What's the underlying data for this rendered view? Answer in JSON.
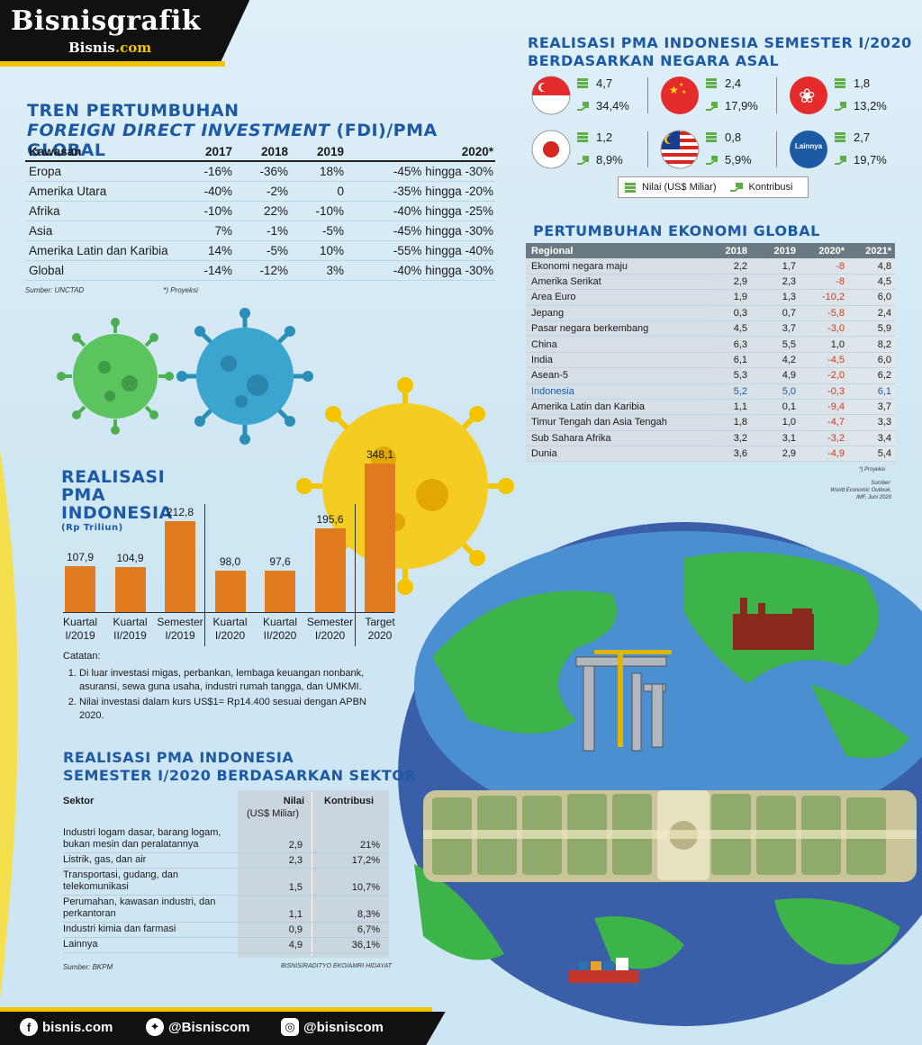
{
  "brand": {
    "title": "Bisnisgrafik",
    "sub_main": "Bisnis",
    "sub_dot": ".com"
  },
  "fdi": {
    "title_line1": "TREN PERTUMBUHAN",
    "title_line2_italic": "FOREIGN DIRECT INVESTMENT",
    "title_line2_rest": " (FDI)/PMA GLOBAL",
    "headers": [
      "Kawasan",
      "2017",
      "2018",
      "2019",
      "2020*"
    ],
    "rows": [
      [
        "Eropa",
        "-16%",
        "-36%",
        "18%",
        "-45% hingga -30%"
      ],
      [
        "Amerika Utara",
        "-40%",
        "-2%",
        "0",
        "-35% hingga -20%"
      ],
      [
        "Afrika",
        "-10%",
        "22%",
        "-10%",
        "-40% hingga -25%"
      ],
      [
        "Asia",
        "7%",
        "-1%",
        "-5%",
        "-45% hingga -30%"
      ],
      [
        "Amerika Latin dan Karibia",
        "14%",
        "-5%",
        "10%",
        "-55% hingga -40%"
      ],
      [
        "Global",
        "-14%",
        "-12%",
        "3%",
        "-40% hingga -30%"
      ]
    ],
    "source": "Sumber: UNCTAD",
    "note": "*) Proyeksi"
  },
  "chart_data": {
    "type": "bar",
    "title": "REALISASI PMA INDONESIA",
    "ylabel": "(Rp Triliun)",
    "categories": [
      "Kuartal I/2019",
      "Kuartal II/2019",
      "Semester I/2019",
      "Kuartal I/2020",
      "Kuartal II/2020",
      "Semester I/2020",
      "Target 2020"
    ],
    "category_lines": [
      [
        "Kuartal",
        "I/2019"
      ],
      [
        "Kuartal",
        "II/2019"
      ],
      [
        "Semester",
        "I/2019"
      ],
      [
        "Kuartal",
        "I/2020"
      ],
      [
        "Kuartal",
        "II/2020"
      ],
      [
        "Semester",
        "I/2020"
      ],
      [
        "Target",
        "2020"
      ]
    ],
    "values": [
      107.9,
      104.9,
      212.8,
      98.0,
      97.6,
      195.6,
      348.1
    ],
    "value_labels": [
      "107,9",
      "104,9",
      "212,8",
      "98,0",
      "97,6",
      "195,6",
      "348,1"
    ],
    "color": "#e07a1f",
    "ylim": [
      0,
      360
    ]
  },
  "bar_title": {
    "line1": "REALISASI",
    "line2": "PMA",
    "line3": "INDONESIA",
    "unit": "(Rp Triliun)"
  },
  "catatan": {
    "label": "Catatan:",
    "items": [
      "Di luar investasi migas, perbankan, lembaga keuangan nonbank, asuransi, sewa guna usaha, industri rumah tangga, dan UMKMI.",
      "Nilai investasi dalam kurs US$1= Rp14.400 sesuai dengan APBN 2020."
    ]
  },
  "sector": {
    "title_line1": "REALISASI PMA INDONESIA",
    "title_line2": "SEMESTER I/2020 BERDASARKAN SEKTOR",
    "headers": {
      "sektor": "Sektor",
      "nilai": "Nilai",
      "nilai_unit": "(US$ Miliar)",
      "kontribusi": "Kontribusi"
    },
    "rows": [
      {
        "label": "Industri logam dasar, barang logam, bukan mesin dan peralatannya",
        "nilai": "2,9",
        "kontribusi": "21%"
      },
      {
        "label": "Listrik, gas, dan air",
        "nilai": "2,3",
        "kontribusi": "17,2%"
      },
      {
        "label": "Transportasi, gudang, dan telekomunikasi",
        "nilai": "1,5",
        "kontribusi": "10,7%"
      },
      {
        "label": "Perumahan, kawasan industri, dan perkantoran",
        "nilai": "1,1",
        "kontribusi": "8,3%"
      },
      {
        "label": "Industri kimia dan farmasi",
        "nilai": "0,9",
        "kontribusi": "6,7%"
      },
      {
        "label": "Lainnya",
        "nilai": "4,9",
        "kontribusi": "36,1%"
      }
    ],
    "source": "Sumber: BKPM",
    "credit": "BISNIS/RADITYO EKO/AMRI HIDAYAT"
  },
  "negara": {
    "title_line1": "REALISASI PMA INDONESIA SEMESTER I/2020",
    "title_line2": "BERDASARKAN NEGARA ASAL",
    "cards": [
      {
        "flag": "singapore-flag",
        "nilai": "4,7",
        "kontribusi": "34,4%"
      },
      {
        "flag": "china-flag",
        "nilai": "2,4",
        "kontribusi": "17,9%"
      },
      {
        "flag": "hong-kong-flag",
        "nilai": "1,8",
        "kontribusi": "13,2%"
      },
      {
        "flag": "japan-flag",
        "nilai": "1,2",
        "kontribusi": "8,9%"
      },
      {
        "flag": "malaysia-flag",
        "nilai": "0,8",
        "kontribusi": "5,9%"
      },
      {
        "flag": "lainnya-badge",
        "badge_text": "Lainnya",
        "nilai": "2,7",
        "kontribusi": "19,7%"
      }
    ],
    "legend_nilai": "Nilai (US$ Miliar)",
    "legend_kontribusi": "Kontribusi"
  },
  "growth": {
    "title": "PERTUMBUHAN EKONOMI GLOBAL",
    "headers": [
      "Regional",
      "2018",
      "2019",
      "2020*",
      "2021*"
    ],
    "rows": [
      [
        "Ekonomi negara maju",
        "2,2",
        "1,7",
        "-8",
        "4,8"
      ],
      [
        "Amerika Serikat",
        "2,9",
        "2,3",
        "-8",
        "4,5"
      ],
      [
        "Area Euro",
        "1,9",
        "1,3",
        "-10,2",
        "6,0"
      ],
      [
        "Jepang",
        "0,3",
        "0,7",
        "-5,8",
        "2,4"
      ],
      [
        "Pasar negara berkembang",
        "4,5",
        "3,7",
        "-3,0",
        "5,9"
      ],
      [
        "China",
        "6,3",
        "5,5",
        "1,0",
        "8,2"
      ],
      [
        "India",
        "6,1",
        "4,2",
        "-4,5",
        "6,0"
      ],
      [
        "Asean-5",
        "5,3",
        "4,9",
        "-2,0",
        "6,2"
      ],
      [
        "Indonesia",
        "5,2",
        "5,0",
        "-0,3",
        "6,1"
      ],
      [
        "Amerika Latin dan Karibia",
        "1,1",
        "0,1",
        "-9,4",
        "3,7"
      ],
      [
        "Timur Tengah dan Asia Tengah",
        "1,8",
        "1,0",
        "-4,7",
        "3,3"
      ],
      [
        "Sub Sahara Afrika",
        "3,2",
        "3,1",
        "-3,2",
        "3,4"
      ],
      [
        "Dunia",
        "3,6",
        "2,9",
        "-4,9",
        "5,4"
      ]
    ],
    "highlight_row": "Indonesia",
    "note": "*) Proyeksi",
    "source_line1": "Sumber:",
    "source_line2": "World Economic Outlook,",
    "source_line3": "IMF, Juni 2020"
  },
  "footer": {
    "facebook": "bisnis.com",
    "twitter": "@Bisniscom",
    "instagram": "@bisniscom"
  },
  "colors": {
    "title_blue": "#1c5aa6",
    "bar_orange": "#e07a1f",
    "negative_red": "#d03a1a",
    "brand_yellow": "#f2c500"
  }
}
